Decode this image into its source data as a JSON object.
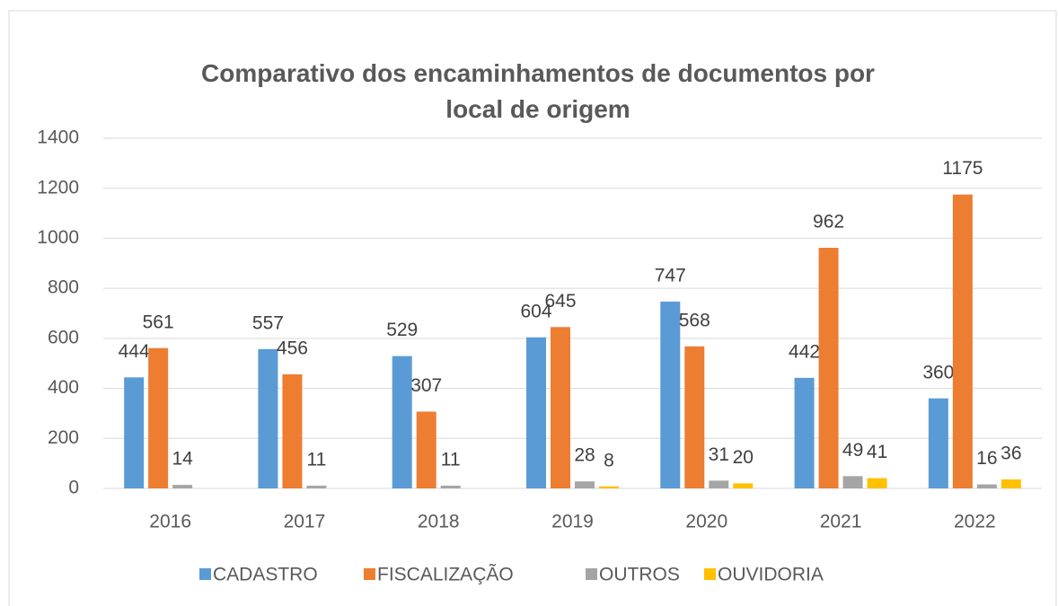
{
  "chart_data": {
    "type": "bar",
    "title": "Comparativo dos encaminhamentos de documentos por local de origem",
    "categories": [
      "2016",
      "2017",
      "2018",
      "2019",
      "2020",
      "2021",
      "2022"
    ],
    "series": [
      {
        "name": "CADASTRO",
        "color": "#5b9bd5",
        "values": [
          444,
          557,
          529,
          604,
          747,
          442,
          360
        ]
      },
      {
        "name": "FISCALIZAÇÃO",
        "color": "#ed7d31",
        "values": [
          561,
          456,
          307,
          645,
          568,
          962,
          1175
        ]
      },
      {
        "name": "OUTROS",
        "color": "#a5a5a5",
        "values": [
          14,
          11,
          11,
          28,
          31,
          49,
          16
        ]
      },
      {
        "name": "OUVIDORIA",
        "color": "#ffc000",
        "values": [
          null,
          null,
          null,
          8,
          20,
          41,
          36
        ]
      }
    ],
    "ylim": [
      0,
      1400
    ],
    "yticks": [
      0,
      200,
      400,
      600,
      800,
      1000,
      1200,
      1400
    ],
    "grid": true,
    "legend": "bottom"
  }
}
